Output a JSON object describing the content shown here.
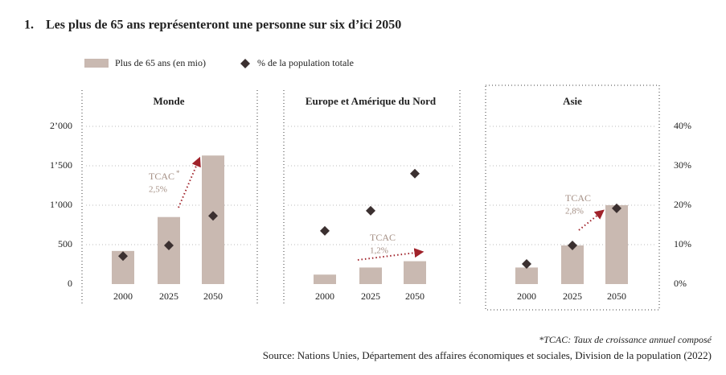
{
  "number": "1.",
  "title": "Les plus de 65 ans représenteront une personne sur six d’ici 2050",
  "footnote": "*TCAC: Taux de croissance annuel composé",
  "source": "Source: Nations Unies, Département des affaires économiques et sociales, Division de la population (2022)",
  "chart_data": [
    {
      "type": "bar",
      "title": "Monde",
      "categories": [
        "2000",
        "2025",
        "2050"
      ],
      "ylim": [
        0,
        2000
      ],
      "y2lim": [
        0,
        40
      ],
      "yticks": [
        0,
        500,
        {
          "value": 1000,
          "label": "1’000"
        },
        {
          "value": 1500,
          "label": "1’500"
        },
        {
          "value": 2000,
          "label": "2’000"
        }
      ],
      "series": [
        {
          "name": "Plus de 65 ans (en mio)",
          "color": "#c9b9b1",
          "values": [
            420,
            850,
            1630
          ]
        },
        {
          "name": "% de la population totale",
          "color": "#3b3030",
          "axis": "y2",
          "values": [
            7.1,
            9.8,
            17.3
          ]
        }
      ],
      "annotation": {
        "label": "TCAC",
        "marker": "*",
        "rate": "2,5%"
      }
    },
    {
      "type": "bar",
      "title": "Europe et Amérique du Nord",
      "categories": [
        "2000",
        "2025",
        "2050"
      ],
      "ylim": [
        0,
        2000
      ],
      "y2lim": [
        0,
        40
      ],
      "series": [
        {
          "color": "#c9b9b1",
          "values": [
            120,
            210,
            290
          ]
        },
        {
          "color": "#3b3030",
          "axis": "y2",
          "values": [
            13.5,
            18.6,
            28
          ]
        }
      ],
      "annotation": {
        "label": "TCAC",
        "rate": "1,2%"
      }
    },
    {
      "type": "bar",
      "title": "Asie",
      "categories": [
        "2000",
        "2025",
        "2050"
      ],
      "ylim": [
        0,
        2000
      ],
      "y2lim": [
        0,
        40
      ],
      "y2ticks": [
        {
          "value": 0,
          "label": "0%"
        },
        {
          "value": 10,
          "label": "10%"
        },
        {
          "value": 20,
          "label": "20%"
        },
        {
          "value": 30,
          "label": "30%"
        },
        {
          "value": 40,
          "label": "40%"
        }
      ],
      "series": [
        {
          "color": "#c9b9b1",
          "values": [
            210,
            490,
            1000
          ]
        },
        {
          "color": "#3b3030",
          "axis": "y2",
          "values": [
            5.1,
            9.8,
            19.2
          ]
        }
      ],
      "annotation": {
        "label": "TCAC",
        "rate": "2,8%"
      }
    }
  ]
}
